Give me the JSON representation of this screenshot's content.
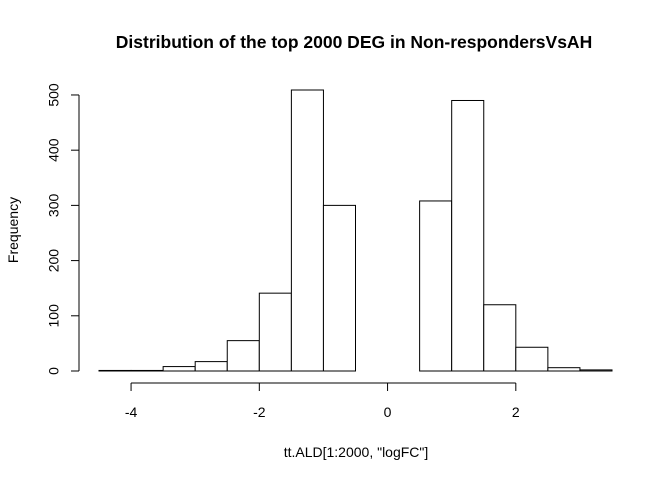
{
  "chart_data": {
    "type": "bar",
    "title": "Distribution of the top 2000 DEG in Non-respondersVsAH",
    "xlabel": "tt.ALD[1:2000, \"logFC\"]",
    "ylabel": "Frequency",
    "bin_edges": [
      -4.5,
      -4.0,
      -3.5,
      -3.0,
      -2.5,
      -2.0,
      -1.5,
      -1.0,
      -0.5,
      0.0,
      0.5,
      1.0,
      1.5,
      2.0,
      2.5,
      3.0,
      3.5
    ],
    "values": [
      1,
      1,
      8,
      17,
      55,
      141,
      509,
      300,
      0,
      0,
      308,
      490,
      120,
      43,
      6,
      2
    ],
    "xlim": [
      -4.5,
      3.5
    ],
    "ylim": [
      0,
      509
    ],
    "x_ticks": [
      -4,
      -2,
      0,
      2
    ],
    "x_tick_labels": [
      "-4",
      "-2",
      "0",
      "2"
    ],
    "y_ticks": [
      0,
      100,
      200,
      300,
      400,
      500
    ],
    "y_tick_labels": [
      "0",
      "100",
      "200",
      "300",
      "400",
      "500"
    ],
    "bar_fill": "#ffffff",
    "bar_stroke": "#000000",
    "grid": false,
    "legend": "none"
  }
}
